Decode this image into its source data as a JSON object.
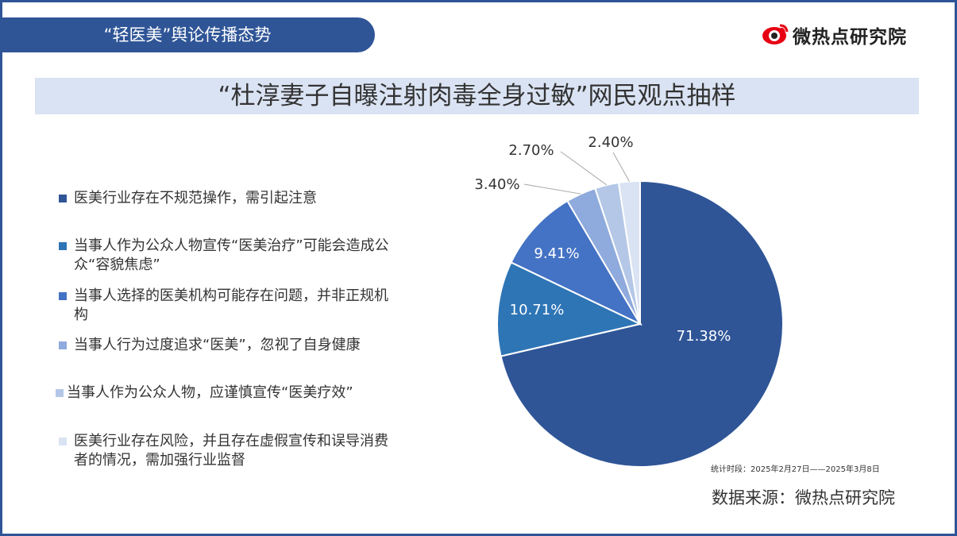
{
  "header": {
    "section_title": "“轻医美”舆论传播态势"
  },
  "logo": {
    "text": "微热点研究院",
    "icon": "weibo-eye-icon",
    "icon_color": "#e60012"
  },
  "title": "“杜淳妻子自曝注射肉毒全身过敏”网民观点抽样",
  "colors": {
    "frame": "#2f5597",
    "band": "#dae3f3"
  },
  "chart_data": {
    "type": "pie",
    "title": "",
    "start_angle_deg": 0,
    "direction": "clockwise",
    "slices": [
      {
        "label": "医美行业存在不规范操作，需引起注意",
        "value": 71.38,
        "display": "71.38%",
        "color": "#2f5597"
      },
      {
        "label": "当事人作为公众人物宣传“医美治疗”可能会造成公众“容貌焦虑”",
        "value": 10.71,
        "display": "10.71%",
        "color": "#2e75b6"
      },
      {
        "label": "当事人选择的医美机构可能存在问题，并非正规机构",
        "value": 9.41,
        "display": "9.41%",
        "color": "#4472c4"
      },
      {
        "label": "当事人行为过度追求“医美”，忽视了自身健康",
        "value": 3.4,
        "display": "3.40%",
        "color": "#8faadc"
      },
      {
        "label": "当事人作为公众人物，应谨慎宣传“医美疗效”",
        "value": 2.7,
        "display": "2.70%",
        "color": "#b4c7e7"
      },
      {
        "label": "医美行业存在风险，并且存在虚假宣传和误导消费者的情况，需加强行业监督",
        "value": 2.4,
        "display": "2.40%",
        "color": "#dae3f3"
      }
    ]
  },
  "legend_items": [
    {
      "label": "医美行业存在不规范操作，需引起注意"
    },
    {
      "label": "当事人作为公众人物宣传“医美治疗”可能会造成公众“容貌焦虑”"
    },
    {
      "label": "当事人选择的医美机构可能存在问题，并非正规机构"
    },
    {
      "label": "当事人行为过度追求“医美”，忽视了自身健康"
    },
    {
      "label": "当事人作为公众人物，应谨慎宣传“医美疗效”"
    },
    {
      "label": "医美行业存在风险，并且存在虚假宣传和误导消费者的情况，需加强行业监督"
    }
  ],
  "footer": {
    "period_note": "统计时段：2025年2月27日——2025年3月8日",
    "source": "数据来源：微热点研究院"
  }
}
